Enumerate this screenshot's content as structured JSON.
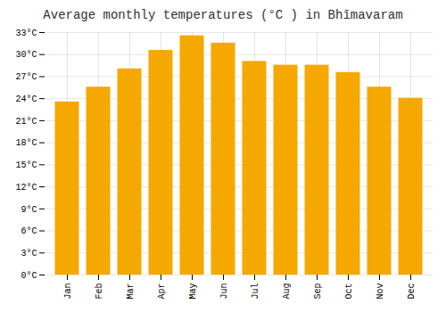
{
  "chart_data": {
    "type": "bar",
    "title": "Average monthly temperatures (°C ) in Bhīmavaram",
    "categories": [
      "Jan",
      "Feb",
      "Mar",
      "Apr",
      "May",
      "Jun",
      "Jul",
      "Aug",
      "Sep",
      "Oct",
      "Nov",
      "Dec"
    ],
    "values": [
      23.5,
      25.5,
      28.0,
      30.5,
      32.5,
      31.5,
      29.0,
      28.5,
      28.5,
      27.5,
      25.5,
      24.0
    ],
    "color": "#F5A800",
    "ylim": [
      0,
      33
    ],
    "yticks": [
      {
        "value": 0,
        "label": "0°C"
      },
      {
        "value": 3,
        "label": "3°C"
      },
      {
        "value": 6,
        "label": "6°C"
      },
      {
        "value": 9,
        "label": "9°C"
      },
      {
        "value": 12,
        "label": "12°C"
      },
      {
        "value": 15,
        "label": "15°C"
      },
      {
        "value": 18,
        "label": "18°C"
      },
      {
        "value": 21,
        "label": "21°C"
      },
      {
        "value": 24,
        "label": "24°C"
      },
      {
        "value": 27,
        "label": "27°C"
      },
      {
        "value": 30,
        "label": "30°C"
      },
      {
        "value": 33,
        "label": "33°C"
      }
    ],
    "grid": true
  }
}
